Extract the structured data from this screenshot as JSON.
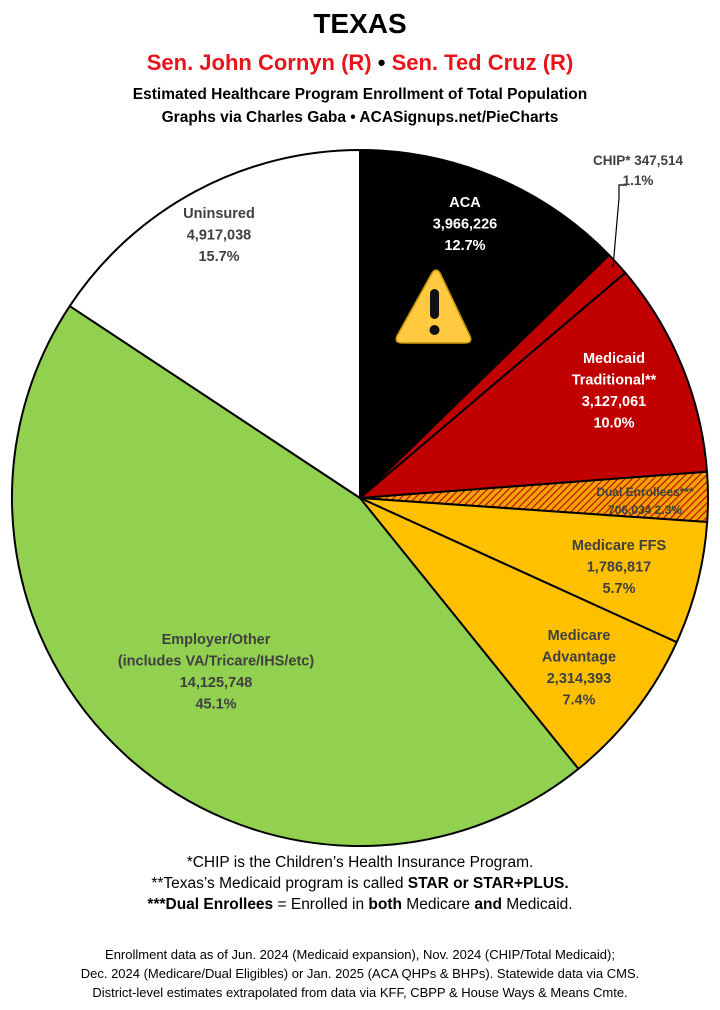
{
  "header": {
    "state": "TEXAS",
    "senator1": "Sen. John Cornyn (R)",
    "bullet": "•",
    "senator2": "Sen. Ted Cruz (R)",
    "subtitle1": "Estimated Healthcare Program Enrollment of Total Population",
    "subtitle2": "Graphs via Charles Gaba  •  ACASignups.net/PieCharts"
  },
  "chart_data": {
    "type": "pie",
    "start_angle_deg": 0,
    "direction": "clockwise",
    "total_percent": 100,
    "slices": [
      {
        "lines": [
          "ACA",
          "3,966,226",
          "12.7%"
        ],
        "value": 3966226,
        "percent": 12.7,
        "color": "#000000",
        "text_color": "#ffffff",
        "warning": true
      },
      {
        "lines": [
          "CHIP* 347,514",
          "1.1%"
        ],
        "value": 347514,
        "percent": 1.1,
        "color": "#c00000",
        "text_color": "#000000",
        "callout": true
      },
      {
        "lines": [
          "Medicaid",
          "Traditional**",
          "3,127,061",
          "10.0%"
        ],
        "value": 3127061,
        "percent": 10.0,
        "color": "#c00000",
        "text_color": "#ffffff"
      },
      {
        "lines": [
          "Dual Enrollees***",
          "706,034 2.3%"
        ],
        "value": 706034,
        "percent": 2.3,
        "color": "#f0a400",
        "text_color": "#404040",
        "hatched": true
      },
      {
        "lines": [
          "Medicare FFS",
          "1,786,817",
          "5.7%"
        ],
        "value": 1786817,
        "percent": 5.7,
        "color": "#ffc000",
        "text_color": "#404040"
      },
      {
        "lines": [
          "Medicare",
          "Advantage",
          "2,314,393",
          "7.4%"
        ],
        "value": 2314393,
        "percent": 7.4,
        "color": "#ffc000",
        "text_color": "#404040"
      },
      {
        "lines": [
          "Employer/Other",
          "(includes VA/Tricare/IHS/etc)",
          "14,125,748",
          "45.1%"
        ],
        "value": 14125748,
        "percent": 45.1,
        "color": "#92d050",
        "text_color": "#404040"
      },
      {
        "lines": [
          "Uninsured",
          "4,917,038",
          "15.7%"
        ],
        "value": 4917038,
        "percent": 15.7,
        "color": "#ffffff",
        "text_color": "#404040"
      }
    ]
  },
  "notes": {
    "line1": "*CHIP is the Children’s Health Insurance Program.",
    "line2_pre": "**Texas’s Medicaid program is called ",
    "line2_bold": "STAR or STAR+PLUS.",
    "line3_b1": "***Dual Enrollees",
    "line3_mid": " = Enrolled in ",
    "line3_b2": "both",
    "line3_mid2": " Medicare ",
    "line3_b3": "and",
    "line3_end": " Medicaid."
  },
  "footer": {
    "line1": "Enrollment data as of Jun. 2024 (Medicaid expansion), Nov. 2024 (CHIP/Total Medicaid);",
    "line2": "Dec. 2024 (Medicare/Dual Eligibles) or Jan. 2025 (ACA QHPs & BHPs). Statewide data via CMS.",
    "line3": "District-level estimates extrapolated from data via KFF, CBPP & House Ways & Means Cmte."
  },
  "colors": {
    "senator_red": "#e8141c",
    "warning_fill": "#ffc940",
    "hatch_stripe": "#c00000"
  }
}
